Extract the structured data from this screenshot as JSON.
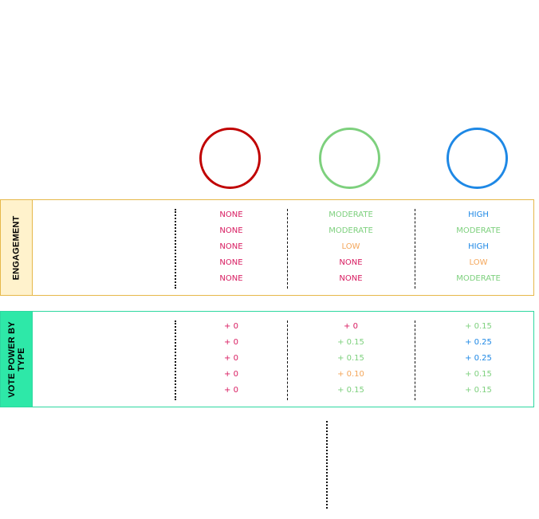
{
  "colors": {
    "red": "#c00000",
    "green": "#7dd07d",
    "blue": "#1e88e5",
    "pink": "#d81b60",
    "orange": "#f4a65a",
    "teal": "#20d0a0",
    "yellow_fill": "#fff2cc",
    "yellow_border": "#e6b84a",
    "teal_fill": "#2ee8a8",
    "teal_border": "#2ed8a0"
  },
  "columns": [
    {
      "circle_color": "#c00000"
    },
    {
      "circle_color": "#7dd07d"
    },
    {
      "circle_color": "#1e88e5"
    }
  ],
  "engagement": {
    "label": "ENGAGEMENT",
    "rows": [
      [
        {
          "text": "NONE",
          "color": "#d81b60"
        },
        {
          "text": "MODERATE",
          "color": "#7dd07d"
        },
        {
          "text": "HIGH",
          "color": "#1e88e5"
        }
      ],
      [
        {
          "text": "NONE",
          "color": "#d81b60"
        },
        {
          "text": "MODERATE",
          "color": "#7dd07d"
        },
        {
          "text": "MODERATE",
          "color": "#7dd07d"
        }
      ],
      [
        {
          "text": "NONE",
          "color": "#d81b60"
        },
        {
          "text": "LOW",
          "color": "#f4a65a"
        },
        {
          "text": "HIGH",
          "color": "#1e88e5"
        }
      ],
      [
        {
          "text": "NONE",
          "color": "#d81b60"
        },
        {
          "text": "NONE",
          "color": "#d81b60"
        },
        {
          "text": "LOW",
          "color": "#f4a65a"
        }
      ],
      [
        {
          "text": "NONE",
          "color": "#d81b60"
        },
        {
          "text": "NONE",
          "color": "#d81b60"
        },
        {
          "text": "MODERATE",
          "color": "#7dd07d"
        }
      ]
    ]
  },
  "vote_power": {
    "label_line1": "VOTE POWER BY",
    "label_line2": "TYPE",
    "rows": [
      [
        {
          "text": "+ 0",
          "color": "#d81b60"
        },
        {
          "text": "+ 0",
          "color": "#d81b60"
        },
        {
          "text": "+ 0.15",
          "color": "#7dd07d"
        }
      ],
      [
        {
          "text": "+ 0",
          "color": "#d81b60"
        },
        {
          "text": "+ 0.15",
          "color": "#7dd07d"
        },
        {
          "text": "+ 0.25",
          "color": "#1e88e5"
        }
      ],
      [
        {
          "text": "+ 0",
          "color": "#d81b60"
        },
        {
          "text": "+ 0.15",
          "color": "#7dd07d"
        },
        {
          "text": "+ 0.25",
          "color": "#1e88e5"
        }
      ],
      [
        {
          "text": "+ 0",
          "color": "#d81b60"
        },
        {
          "text": "+ 0.10",
          "color": "#f4a65a"
        },
        {
          "text": "+ 0.15",
          "color": "#7dd07d"
        }
      ],
      [
        {
          "text": "+ 0",
          "color": "#d81b60"
        },
        {
          "text": "+ 0.15",
          "color": "#7dd07d"
        },
        {
          "text": "+ 0.15",
          "color": "#7dd07d"
        }
      ]
    ]
  }
}
